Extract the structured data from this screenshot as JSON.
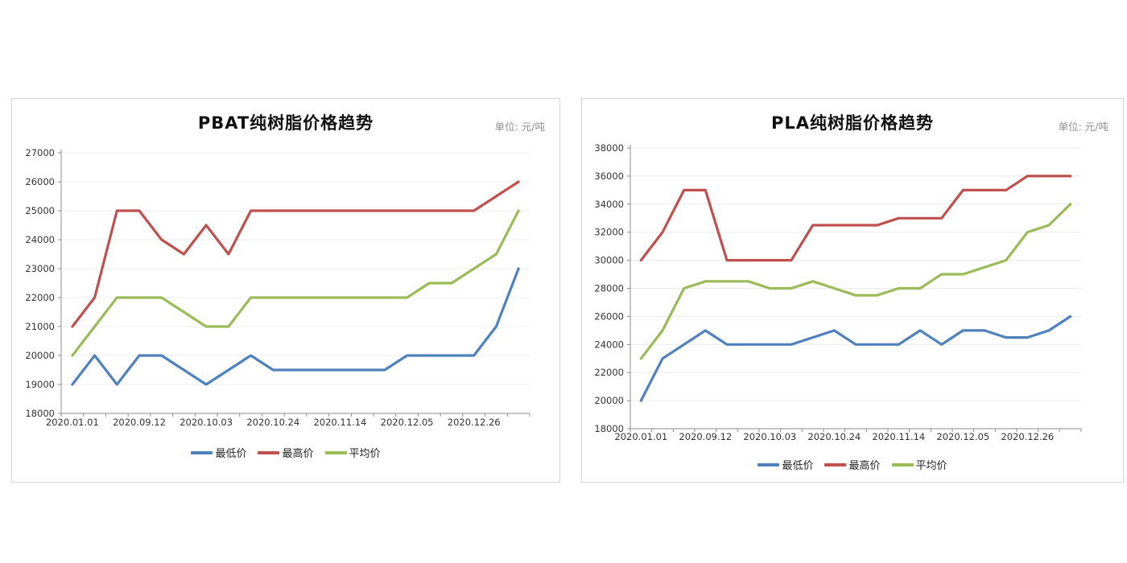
{
  "page_background": "#ffffff",
  "chart_data": [
    {
      "type": "line",
      "title": "PBAT纯树脂价格趋势",
      "unit_label": "单位: 元/吨",
      "x_tick_labels": [
        "2020.01.01",
        "2020.09.12",
        "2020.10.03",
        "2020.10.24",
        "2020.11.14",
        "2020.12.05",
        "2020.12.26"
      ],
      "label_every": 3,
      "n_points": 21,
      "ylim": [
        18000,
        27000
      ],
      "ytick_step": 1000,
      "grid": true,
      "legend_position": "bottom",
      "axis_color": "#8c8c8c",
      "grid_color": "#ececec",
      "tick_label_color": "#333333",
      "series": [
        {
          "name": "最低价",
          "color": "#4F81BD",
          "values": [
            19000,
            20000,
            19000,
            20000,
            20000,
            19500,
            19000,
            19500,
            20000,
            19500,
            19500,
            19500,
            19500,
            19500,
            19500,
            20000,
            20000,
            20000,
            20000,
            21000,
            23000
          ]
        },
        {
          "name": "最高价",
          "color": "#C0504D",
          "values": [
            21000,
            22000,
            25000,
            25000,
            24000,
            23500,
            24500,
            23500,
            25000,
            25000,
            25000,
            25000,
            25000,
            25000,
            25000,
            25000,
            25000,
            25000,
            25000,
            25500,
            26000
          ]
        },
        {
          "name": "平均价",
          "color": "#9BBB59",
          "values": [
            20000,
            21000,
            22000,
            22000,
            22000,
            21500,
            21000,
            21000,
            22000,
            22000,
            22000,
            22000,
            22000,
            22000,
            22000,
            22000,
            22500,
            22500,
            23000,
            23500,
            25000
          ]
        }
      ]
    },
    {
      "type": "line",
      "title": "PLA纯树脂价格趋势",
      "unit_label": "单位: 元/吨",
      "x_tick_labels": [
        "2020.01.01",
        "2020.09.12",
        "2020.10.03",
        "2020.10.24",
        "2020.11.14",
        "2020.12.05",
        "2020.12.26"
      ],
      "label_every": 3,
      "n_points": 21,
      "ylim": [
        18000,
        38000
      ],
      "ytick_step": 2000,
      "grid": true,
      "legend_position": "bottom",
      "axis_color": "#8c8c8c",
      "grid_color": "#ececec",
      "tick_label_color": "#333333",
      "series": [
        {
          "name": "最低价",
          "color": "#4F81BD",
          "values": [
            20000,
            23000,
            24000,
            25000,
            24000,
            24000,
            24000,
            24000,
            24500,
            25000,
            24000,
            24000,
            24000,
            25000,
            24000,
            25000,
            25000,
            24500,
            24500,
            25000,
            26000
          ]
        },
        {
          "name": "最高价",
          "color": "#C0504D",
          "values": [
            30000,
            32000,
            35000,
            35000,
            30000,
            30000,
            30000,
            30000,
            32500,
            32500,
            32500,
            32500,
            33000,
            33000,
            33000,
            35000,
            35000,
            35000,
            36000,
            36000,
            36000
          ]
        },
        {
          "name": "平均价",
          "color": "#9BBB59",
          "values": [
            23000,
            25000,
            28000,
            28500,
            28500,
            28500,
            28000,
            28000,
            28500,
            28000,
            27500,
            27500,
            28000,
            28000,
            29000,
            29000,
            29500,
            30000,
            32000,
            32500,
            34000
          ]
        }
      ]
    }
  ]
}
